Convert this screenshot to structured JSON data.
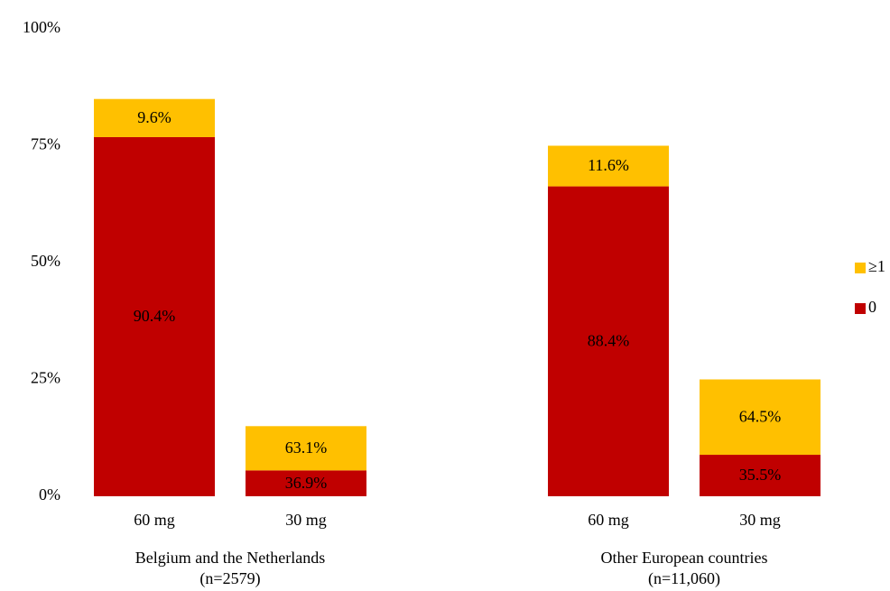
{
  "chart_data": {
    "type": "bar",
    "stacked": true,
    "title": "",
    "xlabel": "",
    "ylabel": "",
    "ylim": [
      0,
      100
    ],
    "y_ticks": [
      "0%",
      "25%",
      "50%",
      "75%",
      "100%"
    ],
    "y_tick_values": [
      0,
      25,
      50,
      75,
      100
    ],
    "grid": false,
    "legend_position": "right",
    "groups": [
      {
        "label": "Belgium and the Netherlands",
        "sublabel": "(n=2579)",
        "bars": [
          {
            "category": "60 mg",
            "total": 85,
            "segments": [
              {
                "series": "0",
                "label": "90.4%"
              },
              {
                "series": "≥1",
                "label": "9.6%"
              }
            ]
          },
          {
            "category": "30 mg",
            "total": 15,
            "segments": [
              {
                "series": "0",
                "label": "36.9%"
              },
              {
                "series": "≥1",
                "label": "63.1%"
              }
            ]
          }
        ]
      },
      {
        "label": "Other European countries",
        "sublabel": "(n=11,060)",
        "bars": [
          {
            "category": "60 mg",
            "total": 75,
            "segments": [
              {
                "series": "0",
                "label": "88.4%"
              },
              {
                "series": "≥1",
                "label": "11.6%"
              }
            ]
          },
          {
            "category": "30 mg",
            "total": 25,
            "segments": [
              {
                "series": "0",
                "label": "35.5%"
              },
              {
                "series": "≥1",
                "label": "64.5%"
              }
            ]
          }
        ]
      }
    ],
    "series": [
      {
        "name": "≥1",
        "color": "#FFC000"
      },
      {
        "name": "0",
        "color": "#C00000"
      }
    ]
  }
}
